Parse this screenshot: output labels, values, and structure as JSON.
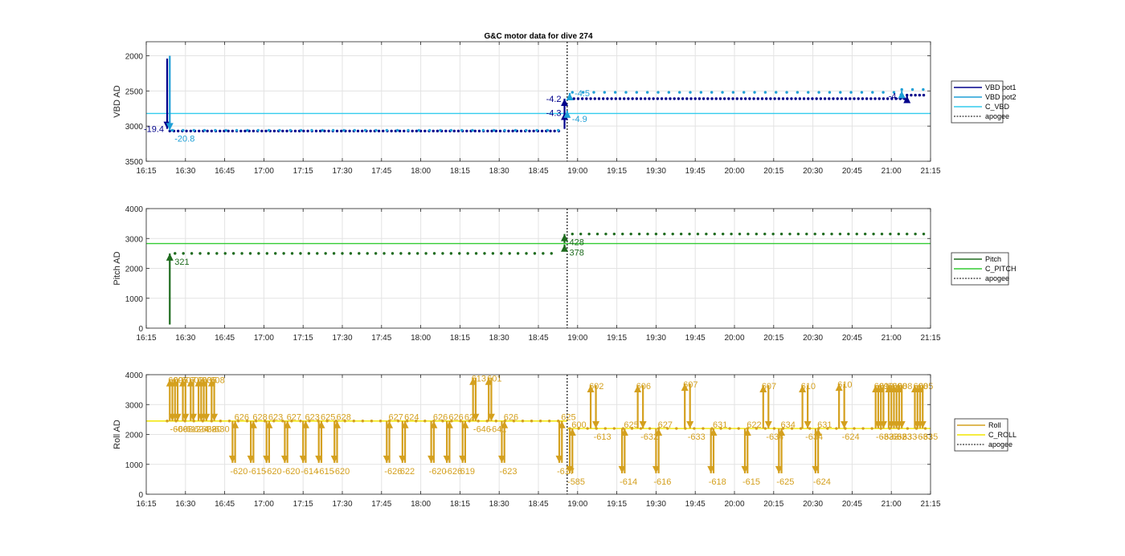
{
  "page": {
    "background": "#ffffff"
  },
  "chart_data": [
    {
      "type": "line",
      "title": "G&C motor data for dive 274",
      "xlabel": "",
      "ylabel": "VBD AD",
      "x_unit": "time (HH:MM)",
      "xlim": [
        "16:15",
        "21:15"
      ],
      "ylim": [
        1800,
        3500
      ],
      "y_reversed": true,
      "xticks": [
        "16:15",
        "16:30",
        "16:45",
        "17:00",
        "17:15",
        "17:30",
        "17:45",
        "18:00",
        "18:15",
        "18:30",
        "18:45",
        "19:00",
        "19:15",
        "19:30",
        "19:45",
        "20:00",
        "20:15",
        "20:30",
        "20:45",
        "21:00",
        "21:15"
      ],
      "yticks": [
        2000,
        2500,
        3000,
        3500
      ],
      "grid": true,
      "legend_position": "right",
      "legend": [
        {
          "name": "VBD pot1",
          "color": "#00008b",
          "style": "solid"
        },
        {
          "name": "VBD pot2",
          "color": "#1e9fd6",
          "style": "solid"
        },
        {
          "name": "C_VBD",
          "color": "#33ccee",
          "style": "solid"
        },
        {
          "name": "apogee",
          "color": "#333333",
          "style": "dotted"
        }
      ],
      "hlines": [
        {
          "name": "C_VBD",
          "y": 2820,
          "color": "#33ccee"
        }
      ],
      "vlines": [
        {
          "name": "apogee",
          "x": "18:56",
          "color": "#333333"
        }
      ],
      "series": [
        {
          "name": "VBD pot1",
          "color": "#00008b",
          "sample_minutes": 1.6,
          "segments": [
            {
              "start": "16:24",
              "end": "18:54",
              "y": 3070
            },
            {
              "start": "18:57",
              "end": "21:06",
              "y": 2610
            },
            {
              "start": "21:06",
              "end": "21:13",
              "y": 2560
            }
          ]
        },
        {
          "name": "VBD pot2",
          "color": "#1e9fd6",
          "sample_minutes": 4.1,
          "segments": [
            {
              "start": "16:25",
              "end": "18:54",
              "y": 3060
            },
            {
              "start": "18:58",
              "end": "21:03",
              "y": 2520
            },
            {
              "start": "21:04",
              "end": "21:13",
              "y": 2480
            }
          ]
        }
      ],
      "moves": [
        {
          "x": "16:23",
          "y_start": 2040,
          "y_end": 3040,
          "label": "-19.4",
          "color": "#00008b",
          "label_side": "left"
        },
        {
          "x": "16:24",
          "y_start": 2000,
          "y_end": 3060,
          "label": "-20.8",
          "color": "#1e9fd6",
          "label_side": "right-below"
        },
        {
          "x": "18:55",
          "y_start": 3040,
          "y_end": 2810,
          "label": "-4.3",
          "color": "#00008b",
          "label_side": "left"
        },
        {
          "x": "18:55",
          "y_start": 2820,
          "y_end": 2610,
          "label": "-4.2",
          "color": "#00008b",
          "label_side": "left"
        },
        {
          "x": "18:56",
          "y_start": 2860,
          "y_end": 2780,
          "label": "-4.9",
          "color": "#1e9fd6",
          "label_side": "right-below"
        },
        {
          "x": "18:57",
          "y_start": 2560,
          "y_end": 2530,
          "label": "-4.5",
          "color": "#1e9fd6",
          "label_side": "right"
        },
        {
          "x": "21:06",
          "y_start": 2600,
          "y_end": 2570,
          "label": "-4.1",
          "color": "#00008b",
          "label_side": "left"
        },
        {
          "x": "21:04",
          "y_start": 2520,
          "y_end": 2500,
          "label": "",
          "color": "#1e9fd6",
          "label_side": "right"
        }
      ]
    },
    {
      "type": "line",
      "title": "",
      "xlabel": "",
      "ylabel": "Pitch AD",
      "x_unit": "time (HH:MM)",
      "xlim": [
        "16:15",
        "21:15"
      ],
      "ylim": [
        0,
        4000
      ],
      "y_reversed": false,
      "xticks": [
        "16:15",
        "16:30",
        "16:45",
        "17:00",
        "17:15",
        "17:30",
        "17:45",
        "18:00",
        "18:15",
        "18:30",
        "18:45",
        "19:00",
        "19:15",
        "19:30",
        "19:45",
        "20:00",
        "20:15",
        "20:30",
        "20:45",
        "21:00",
        "21:15"
      ],
      "yticks": [
        0,
        1000,
        2000,
        3000,
        4000
      ],
      "grid": true,
      "legend_position": "right",
      "legend": [
        {
          "name": "Pitch",
          "color": "#1e6b1e",
          "style": "solid"
        },
        {
          "name": "C_PITCH",
          "color": "#33cc33",
          "style": "solid"
        },
        {
          "name": "apogee",
          "color": "#333333",
          "style": "dotted"
        }
      ],
      "hlines": [
        {
          "name": "C_PITCH",
          "y": 2830,
          "color": "#33cc33"
        }
      ],
      "vlines": [
        {
          "name": "apogee",
          "x": "18:56",
          "color": "#333333"
        }
      ],
      "series": [
        {
          "name": "Pitch",
          "color": "#1e6b1e",
          "sample_minutes": 3.2,
          "segments": [
            {
              "start": "16:26",
              "end": "18:53",
              "y": 2500
            },
            {
              "start": "18:58",
              "end": "21:13",
              "y": 3150
            }
          ]
        }
      ],
      "moves": [
        {
          "x": "16:24",
          "y_start": 120,
          "y_end": 2500,
          "label": "321",
          "color": "#1e6b1e",
          "label_side": "right-below"
        },
        {
          "x": "18:55",
          "y_start": 2600,
          "y_end": 2800,
          "label": "378",
          "color": "#1e6b1e",
          "label_side": "right-below"
        },
        {
          "x": "18:55",
          "y_start": 2850,
          "y_end": 3150,
          "label": "428",
          "color": "#1e6b1e",
          "label_side": "right-below"
        }
      ]
    },
    {
      "type": "line",
      "title": "",
      "xlabel": "",
      "ylabel": "Roll AD",
      "x_unit": "time (HH:MM)",
      "xlim": [
        "16:15",
        "21:15"
      ],
      "ylim": [
        0,
        4000
      ],
      "y_reversed": false,
      "xticks": [
        "16:15",
        "16:30",
        "16:45",
        "17:00",
        "17:15",
        "17:30",
        "17:45",
        "18:00",
        "18:15",
        "18:30",
        "18:45",
        "19:00",
        "19:15",
        "19:30",
        "19:45",
        "20:00",
        "20:15",
        "20:30",
        "20:45",
        "21:00",
        "21:15"
      ],
      "yticks": [
        0,
        1000,
        2000,
        3000,
        4000
      ],
      "grid": true,
      "legend_position": "right",
      "legend": [
        {
          "name": "Roll",
          "color": "#d4a01e",
          "style": "solid"
        },
        {
          "name": "C_ROLL",
          "color": "#f2e600",
          "style": "solid"
        },
        {
          "name": "apogee",
          "color": "#333333",
          "style": "dotted"
        }
      ],
      "hlines": [
        {
          "name": "C_ROLL",
          "x_start": "16:15",
          "x_end": "18:56",
          "y": 2450,
          "color": "#f2e600"
        },
        {
          "name": "C_ROLL",
          "x_start": "18:56",
          "x_end": "21:15",
          "y": 2200,
          "color": "#f2e600"
        }
      ],
      "vlines": [
        {
          "name": "apogee",
          "x": "18:56",
          "color": "#333333"
        }
      ],
      "series": [
        {
          "name": "Roll",
          "color": "#d4a01e",
          "sample_minutes": 3.4,
          "segments": [
            {
              "start": "16:23",
              "end": "18:55",
              "y": 2450
            },
            {
              "start": "18:57",
              "end": "21:14",
              "y": 2200
            }
          ]
        }
      ],
      "up_moves": [
        {
          "x": "16:24",
          "from": 2450,
          "to": 3850,
          "label": "609"
        },
        {
          "x": "16:26",
          "from": 2450,
          "to": 3850,
          "label": "605"
        },
        {
          "x": "16:29",
          "from": 2450,
          "to": 3850,
          "label": "607"
        },
        {
          "x": "16:32",
          "from": 2450,
          "to": 3850,
          "label": "602"
        },
        {
          "x": "16:35",
          "from": 2450,
          "to": 3850,
          "label": "603"
        },
        {
          "x": "16:37",
          "from": 2450,
          "to": 3850,
          "label": "605"
        },
        {
          "x": "16:40",
          "from": 2450,
          "to": 3850,
          "label": "608"
        },
        {
          "x": "18:20",
          "from": 2450,
          "to": 3900,
          "label": "613"
        },
        {
          "x": "18:26",
          "from": 2450,
          "to": 3900,
          "label": "601"
        },
        {
          "x": "19:05",
          "from": 2200,
          "to": 3650,
          "label": "602"
        },
        {
          "x": "19:23",
          "from": 2200,
          "to": 3650,
          "label": "606"
        },
        {
          "x": "19:41",
          "from": 2200,
          "to": 3700,
          "label": "607"
        },
        {
          "x": "20:11",
          "from": 2200,
          "to": 3650,
          "label": "607"
        },
        {
          "x": "20:26",
          "from": 2200,
          "to": 3650,
          "label": "610"
        },
        {
          "x": "20:40",
          "from": 2200,
          "to": 3700,
          "label": "610"
        },
        {
          "x": "20:54",
          "from": 2200,
          "to": 3650,
          "label": "609"
        },
        {
          "x": "20:56",
          "from": 2200,
          "to": 3650,
          "label": "610"
        },
        {
          "x": "20:59",
          "from": 2200,
          "to": 3650,
          "label": "606"
        },
        {
          "x": "21:01",
          "from": 2200,
          "to": 3650,
          "label": "608"
        },
        {
          "x": "21:03",
          "from": 2200,
          "to": 3650,
          "label": "608"
        },
        {
          "x": "21:09",
          "from": 2200,
          "to": 3650,
          "label": "608"
        },
        {
          "x": "21:11",
          "from": 2200,
          "to": 3650,
          "label": "605"
        }
      ],
      "center_moves": [
        {
          "x": "16:25",
          "from": 3850,
          "to": 2450,
          "label": "-606"
        },
        {
          "x": "16:27",
          "from": 3850,
          "to": 2450,
          "label": "-608"
        },
        {
          "x": "16:30",
          "from": 3850,
          "to": 2450,
          "label": "-612"
        },
        {
          "x": "16:33",
          "from": 3850,
          "to": 2450,
          "label": "-624"
        },
        {
          "x": "16:36",
          "from": 3850,
          "to": 2450,
          "label": "-628"
        },
        {
          "x": "16:38",
          "from": 3850,
          "to": 2450,
          "label": "-620"
        },
        {
          "x": "16:41",
          "from": 3850,
          "to": 2450,
          "label": "-630"
        },
        {
          "x": "18:21",
          "from": 3900,
          "to": 2450,
          "label": "-646"
        },
        {
          "x": "18:27",
          "from": 3900,
          "to": 2450,
          "label": "-641"
        },
        {
          "x": "19:07",
          "from": 3650,
          "to": 2200,
          "label": "-613"
        },
        {
          "x": "19:25",
          "from": 3650,
          "to": 2200,
          "label": "-632"
        },
        {
          "x": "19:43",
          "from": 3700,
          "to": 2200,
          "label": "-633"
        },
        {
          "x": "20:13",
          "from": 3650,
          "to": 2200,
          "label": "-634"
        },
        {
          "x": "20:28",
          "from": 3650,
          "to": 2200,
          "label": "-634"
        },
        {
          "x": "20:42",
          "from": 3700,
          "to": 2200,
          "label": "-624"
        },
        {
          "x": "20:55",
          "from": 3650,
          "to": 2200,
          "label": "-633"
        },
        {
          "x": "20:57",
          "from": 3650,
          "to": 2200,
          "label": "-633"
        },
        {
          "x": "21:00",
          "from": 3650,
          "to": 2200,
          "label": "-632"
        },
        {
          "x": "21:02",
          "from": 3650,
          "to": 2200,
          "label": "-633"
        },
        {
          "x": "21:04",
          "from": 3650,
          "to": 2200,
          "label": "-633"
        },
        {
          "x": "21:10",
          "from": 3650,
          "to": 2200,
          "label": "-633"
        },
        {
          "x": "21:12",
          "from": 3650,
          "to": 2200,
          "label": "-635"
        }
      ],
      "down_moves": [
        {
          "x": "16:48",
          "from": 2450,
          "to": 1050,
          "label": "-620"
        },
        {
          "x": "16:55",
          "from": 2450,
          "to": 1050,
          "label": "-615"
        },
        {
          "x": "17:01",
          "from": 2450,
          "to": 1050,
          "label": "-620"
        },
        {
          "x": "17:08",
          "from": 2450,
          "to": 1050,
          "label": "-620"
        },
        {
          "x": "17:15",
          "from": 2450,
          "to": 1050,
          "label": "-614"
        },
        {
          "x": "17:21",
          "from": 2450,
          "to": 1050,
          "label": "-615"
        },
        {
          "x": "17:27",
          "from": 2450,
          "to": 1050,
          "label": "-620"
        },
        {
          "x": "17:47",
          "from": 2450,
          "to": 1050,
          "label": "-626"
        },
        {
          "x": "17:53",
          "from": 2450,
          "to": 1050,
          "label": "622"
        },
        {
          "x": "18:04",
          "from": 2450,
          "to": 1050,
          "label": "-620"
        },
        {
          "x": "18:10",
          "from": 2450,
          "to": 1050,
          "label": "-626"
        },
        {
          "x": "18:16",
          "from": 2450,
          "to": 1050,
          "label": "619"
        },
        {
          "x": "18:31",
          "from": 2450,
          "to": 1050,
          "label": "-623"
        },
        {
          "x": "18:53",
          "from": 2450,
          "to": 1050,
          "label": "-617"
        },
        {
          "x": "18:57",
          "from": 2200,
          "to": 700,
          "label": "-585"
        },
        {
          "x": "19:17",
          "from": 2200,
          "to": 700,
          "label": "-614"
        },
        {
          "x": "19:30",
          "from": 2200,
          "to": 700,
          "label": "-616"
        },
        {
          "x": "19:51",
          "from": 2200,
          "to": 700,
          "label": "-618"
        },
        {
          "x": "20:04",
          "from": 2200,
          "to": 700,
          "label": "-615"
        },
        {
          "x": "20:17",
          "from": 2200,
          "to": 700,
          "label": "-625"
        },
        {
          "x": "20:31",
          "from": 2200,
          "to": 700,
          "label": "-624"
        }
      ],
      "down_returns": [
        {
          "x": "16:49",
          "from": 1050,
          "to": 2450,
          "label": "626"
        },
        {
          "x": "16:56",
          "from": 1050,
          "to": 2450,
          "label": "628"
        },
        {
          "x": "17:02",
          "from": 1050,
          "to": 2450,
          "label": "623"
        },
        {
          "x": "17:09",
          "from": 1050,
          "to": 2450,
          "label": "627"
        },
        {
          "x": "17:16",
          "from": 1050,
          "to": 2450,
          "label": "623"
        },
        {
          "x": "17:22",
          "from": 1050,
          "to": 2450,
          "label": "625"
        },
        {
          "x": "17:28",
          "from": 1050,
          "to": 2450,
          "label": "628"
        },
        {
          "x": "17:48",
          "from": 1050,
          "to": 2450,
          "label": "627"
        },
        {
          "x": "17:54",
          "from": 1050,
          "to": 2450,
          "label": "624"
        },
        {
          "x": "18:05",
          "from": 1050,
          "to": 2450,
          "label": "626"
        },
        {
          "x": "18:11",
          "from": 1050,
          "to": 2450,
          "label": "626"
        },
        {
          "x": "18:17",
          "from": 1050,
          "to": 2450,
          "label": "627"
        },
        {
          "x": "18:32",
          "from": 1050,
          "to": 2450,
          "label": "626"
        },
        {
          "x": "18:54",
          "from": 1050,
          "to": 2450,
          "label": "625"
        },
        {
          "x": "18:58",
          "from": 700,
          "to": 2200,
          "label": "600"
        },
        {
          "x": "19:18",
          "from": 700,
          "to": 2200,
          "label": "625"
        },
        {
          "x": "19:31",
          "from": 700,
          "to": 2200,
          "label": "627"
        },
        {
          "x": "19:52",
          "from": 700,
          "to": 2200,
          "label": "631"
        },
        {
          "x": "20:05",
          "from": 700,
          "to": 2200,
          "label": "622"
        },
        {
          "x": "20:18",
          "from": 700,
          "to": 2200,
          "label": "634"
        },
        {
          "x": "20:32",
          "from": 700,
          "to": 2200,
          "label": "631"
        }
      ]
    }
  ]
}
